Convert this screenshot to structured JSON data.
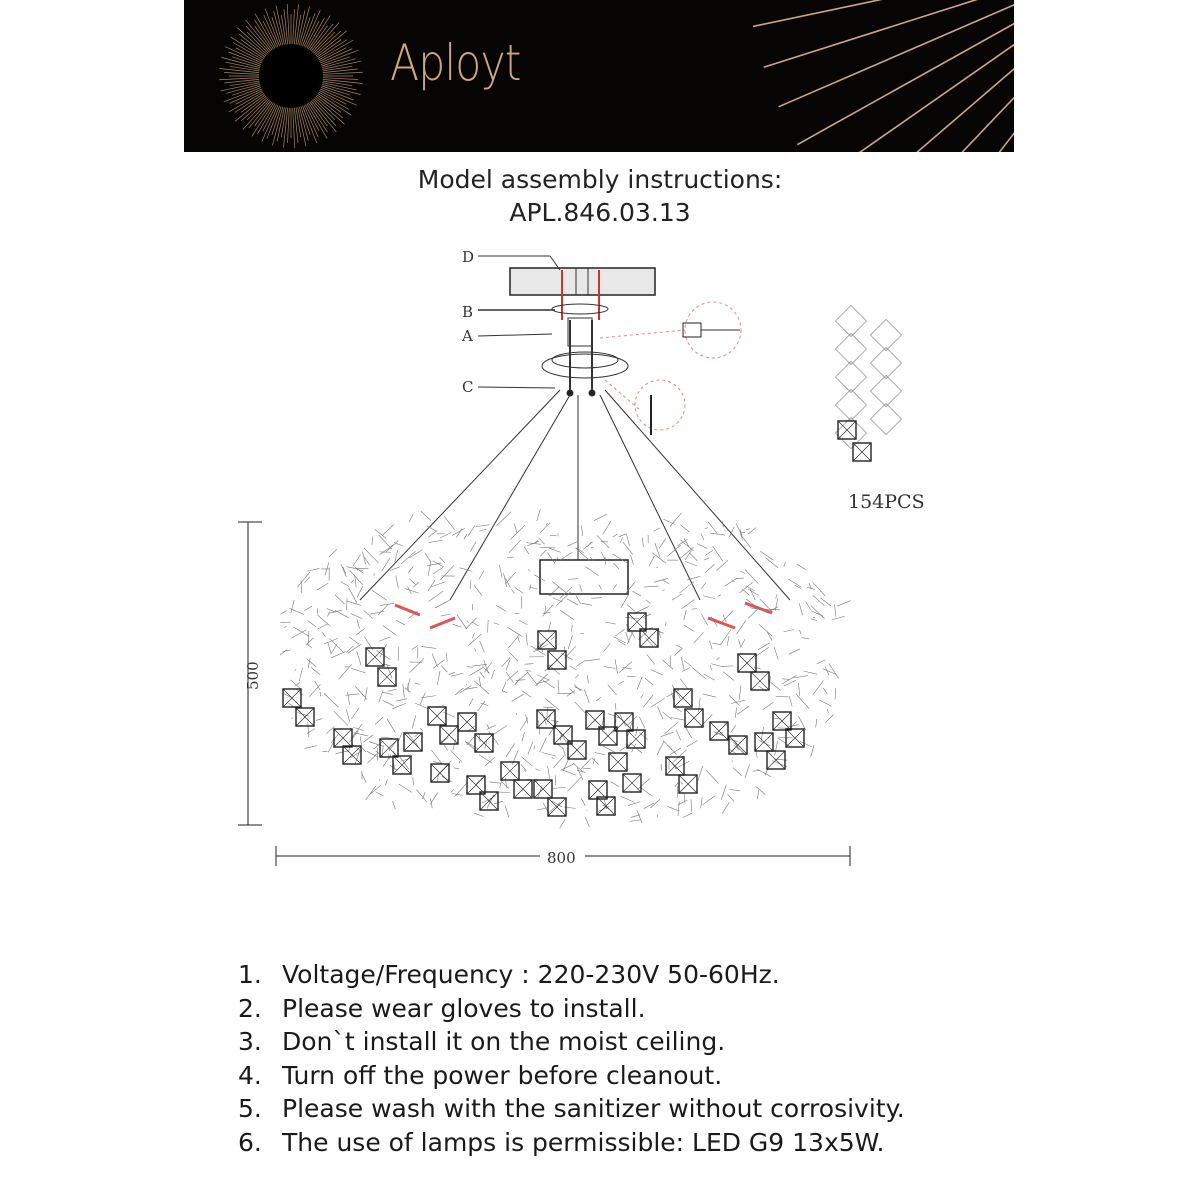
{
  "header": {
    "brand": "Aployt",
    "brand_color": "#cfa878",
    "background_color": "#070504"
  },
  "title": {
    "line1": "Model assembly instructions:",
    "model": "APL.846.03.13"
  },
  "diagram": {
    "part_labels": [
      "D",
      "B",
      "A",
      "C"
    ],
    "pieces_label": "154PCS",
    "height_dimension": "500",
    "width_dimension": "800"
  },
  "instructions": [
    {
      "num": "1.",
      "text": "Voltage/Frequency : 220-230V 50-60Hz."
    },
    {
      "num": "2.",
      "text": "Please wear gloves to install."
    },
    {
      "num": "3.",
      "text": "Don`t install it on the moist ceiling."
    },
    {
      "num": "4.",
      "text": "Turn off the power before cleanout."
    },
    {
      "num": "5.",
      "text": "Please wash with the sanitizer without corrosivity."
    },
    {
      "num": "6.",
      "text": "The use of lamps is permissible: LED G9 13x5W."
    }
  ]
}
